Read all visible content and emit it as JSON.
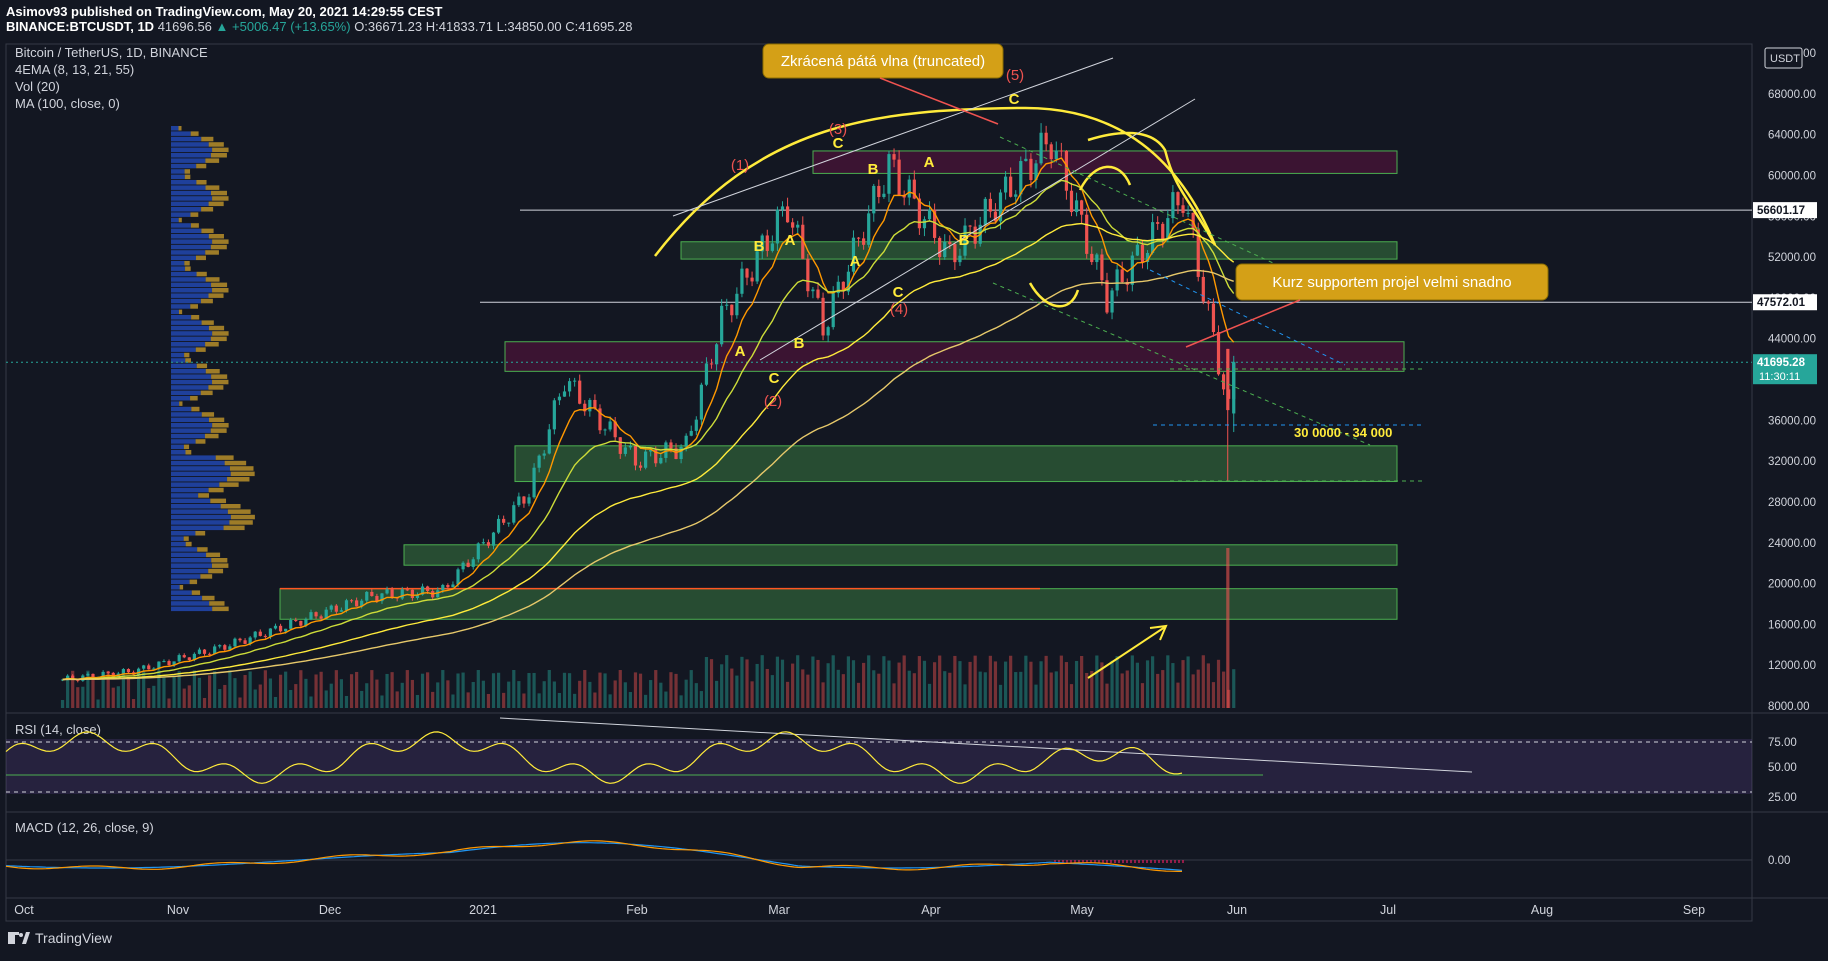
{
  "header": {
    "line1": "Asimov93 published on TradingView.com, May 20, 2021 14:29:55 CEST",
    "symbol": "BINANCE:BTCUSDT, 1D",
    "last": "41696.56",
    "change": "▲ +5006.47 (+13.65%)",
    "ohlc": "O:36671.23 H:41833.71 L:34850.00 C:41695.28"
  },
  "legend": {
    "title": "Bitcoin / TetherUS, 1D, BINANCE",
    "ema": "4EMA (8, 13, 21, 55)",
    "vol": "Vol (20)",
    "ma": "MA (100, close, 0)"
  },
  "panes": {
    "rsi_label": "RSI (14, close)",
    "macd_label": "MACD (12, 26, close, 9)"
  },
  "annotations": {
    "callout1": "Zkrácená pátá vlna (truncated)",
    "callout2": "Kurz supportem projel velmi snadno",
    "range": "30 0000 - 34 000",
    "waves": [
      "(1)",
      "(2)",
      "(3)",
      "(4)",
      "(5)"
    ],
    "letters": [
      "A",
      "B",
      "C"
    ]
  },
  "price_axis": {
    "currency": "USDT",
    "ticks": [
      "72000.00",
      "68000.00",
      "64000.00",
      "60000.00",
      "56000.00",
      "52000.00",
      "48000.00",
      "44000.00",
      "40000.00",
      "36000.00",
      "32000.00",
      "28000.00",
      "24000.00",
      "20000.00",
      "16000.00",
      "12000.00",
      "8000.00"
    ],
    "markers": [
      {
        "label": "56601.17",
        "price": 56601.17,
        "bg": "#ffffff",
        "fg": "#131722"
      },
      {
        "label": "47572.01",
        "price": 47572.01,
        "bg": "#ffffff",
        "fg": "#131722"
      },
      {
        "label": "41695.28",
        "sub": "11:30:11",
        "price": 41695.28,
        "bg": "#26a69a",
        "fg": "#ffffff"
      }
    ]
  },
  "rsi_axis": [
    "75.00",
    "50.00",
    "25.00"
  ],
  "macd_axis": [
    "0.00"
  ],
  "time_axis": [
    "Oct",
    "Nov",
    "Dec",
    "2021",
    "Feb",
    "Mar",
    "Apr",
    "May",
    "Jun",
    "Jul",
    "Aug",
    "Sep"
  ],
  "branding": "TradingView",
  "colors": {
    "background": "#131722",
    "up": "#26a69a",
    "down": "#ef5350",
    "annotation": "#ffeb3b",
    "callout_bg": "#d4a017",
    "zone_green": "#4caf50",
    "zone_red": "#880e4f"
  },
  "chart_data": {
    "type": "candlestick",
    "title": "Bitcoin / TetherUS, 1D, BINANCE",
    "y_range": [
      6000,
      73000
    ],
    "x": [
      "2020-10-01",
      "2020-10-15",
      "2020-11-01",
      "2020-11-15",
      "2020-12-01",
      "2020-12-15",
      "2021-01-01",
      "2021-01-08",
      "2021-01-15",
      "2021-01-22",
      "2021-02-01",
      "2021-02-08",
      "2021-02-21",
      "2021-02-28",
      "2021-03-13",
      "2021-03-25",
      "2021-04-14",
      "2021-04-25",
      "2021-05-10",
      "2021-05-19",
      "2021-05-20"
    ],
    "close": [
      10600,
      11400,
      13700,
      16000,
      18800,
      19300,
      29000,
      40000,
      36000,
      32000,
      33500,
      46000,
      57000,
      45000,
      61000,
      52000,
      63500,
      48000,
      58000,
      37000,
      41695
    ]
  }
}
